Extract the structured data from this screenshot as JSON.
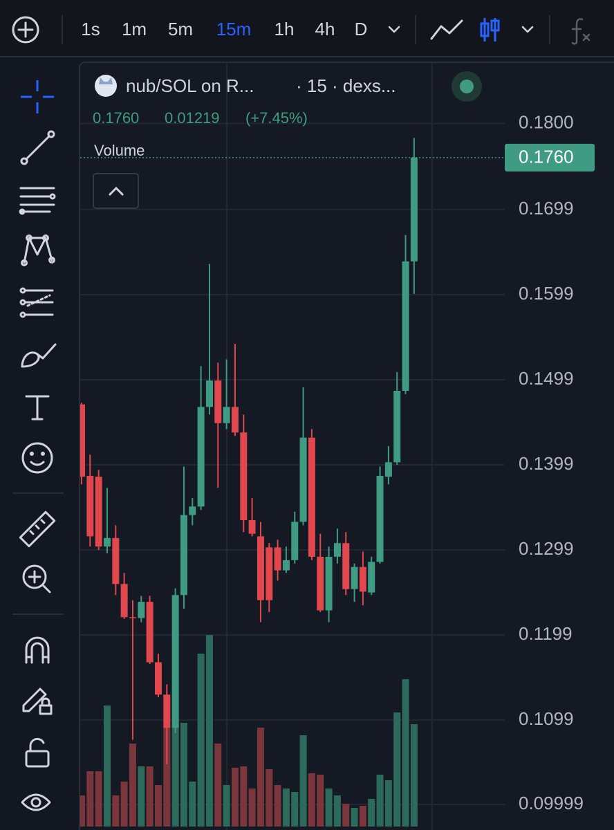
{
  "toolbar": {
    "intervals": [
      "1s",
      "1m",
      "5m",
      "15m",
      "1h",
      "4h",
      "D"
    ],
    "active_interval_index": 3
  },
  "chart_data": {
    "type": "candlestick",
    "title": "nub/SOL on R...",
    "subtitle": "· 15 · dexs...",
    "legend_values": [
      "0.1760",
      "0.01219",
      "(+7.45%)"
    ],
    "volume_label": "Volume",
    "up_color": "#3f9c82",
    "down_color": "#e0484d",
    "ylim": [
      0.0974,
      0.1872
    ],
    "yticks": [
      {
        "value": 0.18,
        "label": "0.1800"
      },
      0.1699,
      0.1599,
      0.1499,
      0.1399,
      0.1299,
      0.1199,
      0.1099,
      0.09999
    ],
    "last_price": {
      "value": 0.176,
      "label": "0.1760"
    },
    "open": [
      0.147,
      0.1386,
      0.1385,
      0.1303,
      0.1313,
      0.1259,
      0.122,
      0.1219,
      0.1238,
      0.1167,
      0.1129,
      0.109,
      0.1246,
      0.134,
      0.135,
      0.1467,
      0.1498,
      0.1448,
      0.1467,
      0.1437,
      0.1334,
      0.1315,
      0.1302,
      0.1302,
      0.1275,
      0.1287,
      0.1332,
      0.1431,
      0.1291,
      0.1228,
      0.1291,
      0.1307,
      0.1253,
      0.1279,
      0.1249,
      0.1285,
      0.1385,
      0.1402,
      0.1486,
      0.1638
    ],
    "high": [
      0.1472,
      0.1411,
      0.1393,
      0.1372,
      0.1328,
      0.1272,
      0.124,
      0.1245,
      0.1245,
      0.1177,
      0.1141,
      0.1254,
      0.1397,
      0.136,
      0.1515,
      0.1635,
      0.1519,
      0.1523,
      0.1541,
      0.1458,
      0.136,
      0.1332,
      0.1307,
      0.1311,
      0.1303,
      0.1344,
      0.149,
      0.1441,
      0.1318,
      0.1303,
      0.1324,
      0.132,
      0.1283,
      0.1297,
      0.1291,
      0.1397,
      0.1421,
      0.1508,
      0.1669,
      0.1783
    ],
    "low": [
      0.1376,
      0.1303,
      0.1299,
      0.1295,
      0.1246,
      0.1218,
      0.1076,
      0.1214,
      0.1165,
      0.1126,
      0.1047,
      0.1084,
      0.123,
      0.1328,
      0.1346,
      0.1458,
      0.1372,
      0.1441,
      0.1433,
      0.132,
      0.1315,
      0.1214,
      0.1226,
      0.1263,
      0.1272,
      0.1283,
      0.1328,
      0.1287,
      0.1226,
      0.1214,
      0.1283,
      0.1246,
      0.1238,
      0.1234,
      0.1246,
      0.1283,
      0.1376,
      0.1399,
      0.1482,
      0.16
    ],
    "close": [
      0.1385,
      0.1315,
      0.1303,
      0.1313,
      0.1259,
      0.122,
      0.1219,
      0.1238,
      0.1167,
      0.1129,
      0.109,
      0.1246,
      0.134,
      0.135,
      0.1467,
      0.1498,
      0.1448,
      0.1467,
      0.1437,
      0.1334,
      0.1318,
      0.124,
      0.124,
      0.1275,
      0.1287,
      0.1332,
      0.1431,
      0.1291,
      0.1228,
      0.1291,
      0.1307,
      0.1253,
      0.1279,
      0.125,
      0.1285,
      0.1386,
      0.1402,
      0.1486,
      0.1638,
      0.176
    ],
    "volume": {
      "ylim": [
        0,
        300
      ],
      "up_color": "#2c6a5b",
      "down_color": "#7a363b",
      "values": [
        45,
        80,
        80,
        175,
        45,
        65,
        120,
        87,
        87,
        60,
        145,
        150,
        150,
        65,
        250,
        277,
        120,
        60,
        85,
        87,
        55,
        143,
        83,
        60,
        55,
        50,
        132,
        77,
        75,
        55,
        45,
        33,
        27,
        30,
        40,
        75,
        67,
        165,
        213,
        148
      ]
    },
    "grid": true
  }
}
